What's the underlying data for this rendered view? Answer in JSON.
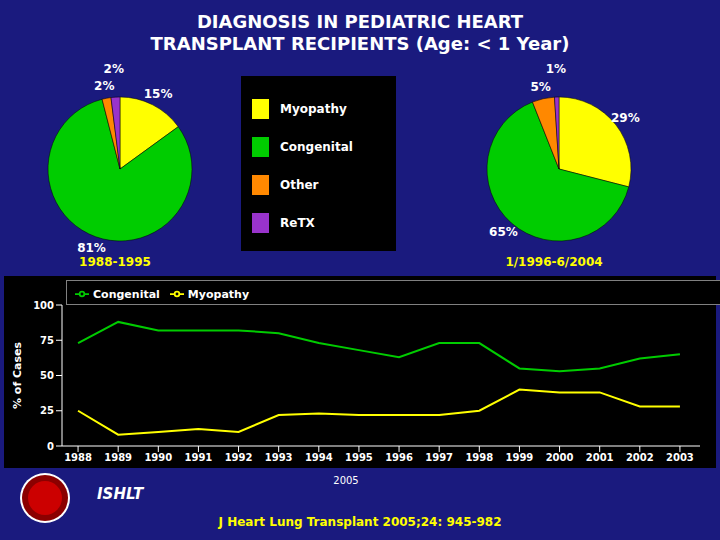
{
  "title": "DIAGNOSIS IN PEDIATRIC HEART",
  "subtitle": "TRANSPLANT RECIPIENTS (Age: < 1 Year)",
  "annotations": [
    "ISHLT",
    "2005",
    "J Heart Lung Transplant 2005;24: 945-982"
  ],
  "chart_data": [
    {
      "type": "pie",
      "title": "1988-1995",
      "categories": [
        "Myopathy",
        "Congenital",
        "Other",
        "ReTX"
      ],
      "values": [
        15,
        81,
        2,
        2
      ],
      "value_labels": [
        "15%",
        "81%",
        "2%",
        "2%"
      ],
      "colors": [
        "#ffff00",
        "#00cc00",
        "#ff8800",
        "#9933cc"
      ],
      "data_labels": true
    },
    {
      "type": "pie",
      "title": "1/1996-6/2004",
      "categories": [
        "Myopathy",
        "Congenital",
        "Other",
        "ReTX"
      ],
      "values": [
        29,
        65,
        5,
        1
      ],
      "value_labels": [
        "29%",
        "65%",
        "5%",
        "1%"
      ],
      "colors": [
        "#ffff00",
        "#00cc00",
        "#ff8800",
        "#9933cc"
      ],
      "data_labels": true
    },
    {
      "type": "line",
      "x": [
        1988,
        1989,
        1990,
        1991,
        1992,
        1993,
        1994,
        1995,
        1996,
        1997,
        1998,
        1999,
        2000,
        2001,
        2002,
        2003
      ],
      "xlim": [
        1987.6,
        2003.5
      ],
      "xticks": [
        1988,
        1989,
        1990,
        1991,
        1992,
        1993,
        1994,
        1995,
        1996,
        1997,
        1998,
        1999,
        2000,
        2001,
        2002,
        2003
      ],
      "ylim": [
        0,
        100
      ],
      "yticks": [
        0,
        25,
        50,
        75,
        100
      ],
      "ylabel": "% of Cases",
      "series": [
        {
          "name": "Myopathy",
          "color": "#ffff00",
          "values": [
            25,
            8,
            10,
            12,
            10,
            22,
            23,
            22,
            22,
            22,
            25,
            40,
            38,
            38,
            28,
            28
          ]
        },
        {
          "name": "Congenital",
          "color": "#00cc00",
          "values": [
            73,
            88,
            82,
            82,
            82,
            80,
            73,
            68,
            63,
            73,
            73,
            55,
            53,
            55,
            62,
            65
          ]
        }
      ],
      "legend": "upper left",
      "grid": false
    }
  ]
}
